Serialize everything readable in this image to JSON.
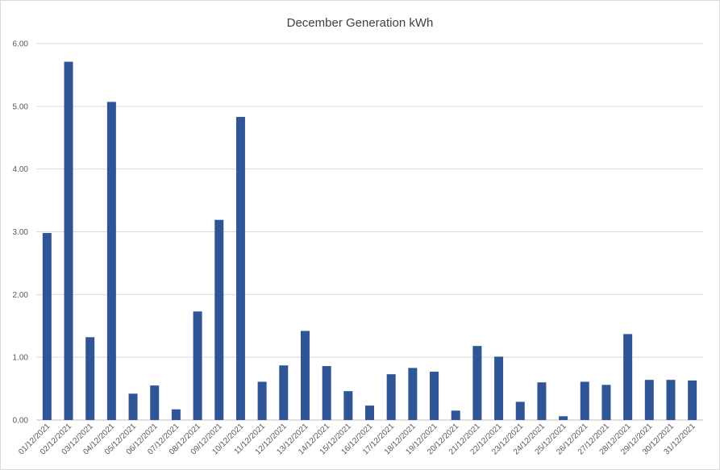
{
  "chart_data": {
    "type": "bar",
    "title": "December Generation kWh",
    "xlabel": "",
    "ylabel": "",
    "ylim": [
      0,
      6
    ],
    "yticks": [
      "0.00",
      "1.00",
      "2.00",
      "3.00",
      "4.00",
      "5.00",
      "6.00"
    ],
    "grid": true,
    "legend": "none",
    "bar_color": "#2F5597",
    "categories": [
      "01/12/2021",
      "02/12/2021",
      "03/12/2021",
      "04/12/2021",
      "05/12/2021",
      "06/12/2021",
      "07/12/2021",
      "08/12/2021",
      "09/12/2021",
      "10/12/2021",
      "11/12/2021",
      "12/12/2021",
      "13/12/2021",
      "14/12/2021",
      "15/12/2021",
      "16/12/2021",
      "17/12/2021",
      "18/12/2021",
      "19/12/2021",
      "20/12/2021",
      "21/12/2021",
      "22/12/2021",
      "23/12/2021",
      "24/12/2021",
      "25/12/2021",
      "26/12/2021",
      "27/12/2021",
      "28/12/2021",
      "29/12/2021",
      "30/12/2021",
      "31/12/2021"
    ],
    "values": [
      2.98,
      5.71,
      1.32,
      5.07,
      0.42,
      0.55,
      0.17,
      1.73,
      3.19,
      4.83,
      0.61,
      0.87,
      1.42,
      0.86,
      0.46,
      0.23,
      0.73,
      0.83,
      0.77,
      0.15,
      1.18,
      1.01,
      0.29,
      0.6,
      0.06,
      0.61,
      0.56,
      1.37,
      0.64,
      0.64,
      0.63
    ]
  }
}
